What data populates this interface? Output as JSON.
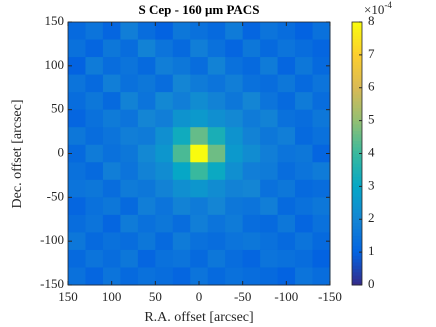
{
  "chart_data": {
    "type": "heatmap",
    "title": "S Cep - 160 μm PACS",
    "x_label": "R.A. offset [arcsec]",
    "y_label": "Dec. offset [arcsec]",
    "xlim": [
      150,
      -150
    ],
    "xticks": [
      150,
      100,
      50,
      0,
      -50,
      -100,
      -150
    ],
    "ylim": [
      -150,
      150
    ],
    "yticks": [
      150,
      100,
      50,
      0,
      -50,
      -100,
      -150
    ],
    "colorbar": {
      "lim": [
        0,
        8
      ],
      "ticks": [
        0,
        1,
        2,
        3,
        4,
        5,
        6,
        7,
        8
      ],
      "multiplier_base": "×10",
      "multiplier_exponent": "-4"
    },
    "colormap": [
      "#352a87",
      "#0363e1",
      "#1485d4",
      "#06a7c6",
      "#38b99e",
      "#92bf73",
      "#d9ba56",
      "#fcce2e",
      "#f9fb0e"
    ],
    "z": [
      [
        1.2,
        1.5,
        1.1,
        1.8,
        1.3,
        1.0,
        1.6,
        1.4,
        1.2,
        1.7,
        1.1,
        1.5,
        1.3,
        1.0,
        1.4
      ],
      [
        1.4,
        1.1,
        1.6,
        1.3,
        1.9,
        1.5,
        1.2,
        1.8,
        1.4,
        1.1,
        1.6,
        1.2,
        1.5,
        1.3,
        1.1
      ],
      [
        1.0,
        1.7,
        1.3,
        1.5,
        1.2,
        1.8,
        1.6,
        1.3,
        1.9,
        1.4,
        1.2,
        1.7,
        1.1,
        1.6,
        1.2
      ],
      [
        1.5,
        1.2,
        1.8,
        1.4,
        1.6,
        1.3,
        2.0,
        1.7,
        1.5,
        1.8,
        1.4,
        1.3,
        1.6,
        1.2,
        1.5
      ],
      [
        1.3,
        1.6,
        1.2,
        1.9,
        1.5,
        2.1,
        1.8,
        2.2,
        1.9,
        1.6,
        2.0,
        1.5,
        1.2,
        1.7,
        1.3
      ],
      [
        1.1,
        1.4,
        1.7,
        1.5,
        2.0,
        1.8,
        2.4,
        2.6,
        2.3,
        2.1,
        1.7,
        1.9,
        1.4,
        1.3,
        1.6
      ],
      [
        1.6,
        1.3,
        1.5,
        1.8,
        1.7,
        2.3,
        3.2,
        4.5,
        3.4,
        2.4,
        1.9,
        1.6,
        1.8,
        1.2,
        1.4
      ],
      [
        1.2,
        1.7,
        1.4,
        1.6,
        2.1,
        2.5,
        4.2,
        8.0,
        4.6,
        2.6,
        2.2,
        1.8,
        1.5,
        1.6,
        1.1
      ],
      [
        1.4,
        1.2,
        1.8,
        1.5,
        1.9,
        2.2,
        3.0,
        4.0,
        3.1,
        2.3,
        1.8,
        1.7,
        1.3,
        1.5,
        1.7
      ],
      [
        1.5,
        1.6,
        1.3,
        1.7,
        1.6,
        1.9,
        2.3,
        2.5,
        2.2,
        1.9,
        2.0,
        1.4,
        1.6,
        1.2,
        1.3
      ],
      [
        1.1,
        1.4,
        1.6,
        1.2,
        1.8,
        1.5,
        1.9,
        1.7,
        2.0,
        1.6,
        1.5,
        1.8,
        1.2,
        1.4,
        1.6
      ],
      [
        1.3,
        1.5,
        1.1,
        1.7,
        1.4,
        1.6,
        1.3,
        1.8,
        1.5,
        1.7,
        1.3,
        1.2,
        1.6,
        1.1,
        1.4
      ],
      [
        1.6,
        1.2,
        1.4,
        1.3,
        1.6,
        1.2,
        1.7,
        1.4,
        1.3,
        1.5,
        1.6,
        1.4,
        1.2,
        1.5,
        1.2
      ],
      [
        1.2,
        1.5,
        1.3,
        1.6,
        1.1,
        1.4,
        1.5,
        1.2,
        1.6,
        1.3,
        1.1,
        1.5,
        1.4,
        1.3,
        1.0
      ],
      [
        1.4,
        1.1,
        1.5,
        1.2,
        1.4,
        1.3,
        1.1,
        1.5,
        1.2,
        1.4,
        1.3,
        1.2,
        1.0,
        1.5,
        1.3
      ]
    ]
  }
}
